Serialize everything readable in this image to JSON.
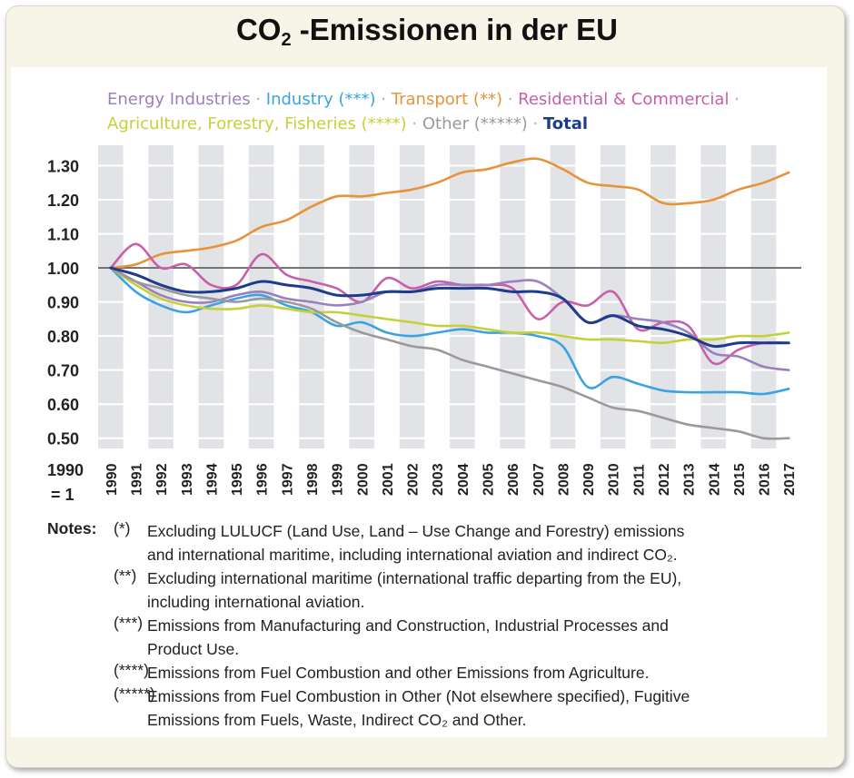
{
  "title": {
    "main": "CO",
    "sub": "2",
    "rest": " -Emissionen in der EU"
  },
  "legend": [
    {
      "label": "Energy Industries",
      "color": "#9b7fc0"
    },
    {
      "label": "Industry (***)",
      "color": "#3aa3e0"
    },
    {
      "label": "Transport (**)",
      "color": "#e8923a"
    },
    {
      "label": "Residential & Commercial",
      "color": "#c95fa8"
    },
    {
      "label": "Agriculture, Forestry, Fisheries (****)",
      "color": "#c5d13a"
    },
    {
      "label": "Other (*****)",
      "color": "#9a9a9a"
    },
    {
      "label": "Total",
      "color": "#1f3b8c"
    }
  ],
  "chart_data": {
    "type": "line",
    "x": [
      "1990",
      "1991",
      "1992",
      "1993",
      "1994",
      "1995",
      "1996",
      "1997",
      "1998",
      "1999",
      "2000",
      "2001",
      "2002",
      "2003",
      "2004",
      "2005",
      "2006",
      "2007",
      "2008",
      "2009",
      "2010",
      "2011",
      "2012",
      "2013",
      "2014",
      "2015",
      "2016",
      "2017"
    ],
    "y_ticks": [
      "1.30",
      "1.20",
      "1.10",
      "1.00",
      "0.90",
      "0.80",
      "0.70",
      "0.60",
      "0.50"
    ],
    "ylim": [
      0.47,
      1.36
    ],
    "reference_line": 1.0,
    "ylabel": "1990 = 1",
    "ylabel_line1": "1990",
    "ylabel_line2": "= 1",
    "series": [
      {
        "name": "Transport (**)",
        "color": "#e8923a",
        "values": [
          1.0,
          1.01,
          1.04,
          1.05,
          1.06,
          1.08,
          1.12,
          1.14,
          1.18,
          1.21,
          1.21,
          1.22,
          1.23,
          1.25,
          1.28,
          1.29,
          1.31,
          1.32,
          1.29,
          1.25,
          1.24,
          1.23,
          1.19,
          1.19,
          1.2,
          1.23,
          1.25,
          1.28
        ]
      },
      {
        "name": "Residential & Commercial",
        "color": "#c95fa8",
        "values": [
          1.0,
          1.07,
          1.0,
          1.01,
          0.95,
          0.95,
          1.04,
          0.98,
          0.96,
          0.94,
          0.9,
          0.97,
          0.94,
          0.96,
          0.95,
          0.95,
          0.94,
          0.85,
          0.9,
          0.89,
          0.93,
          0.82,
          0.84,
          0.83,
          0.72,
          0.76,
          0.78,
          0.78
        ]
      },
      {
        "name": "Energy Industries",
        "color": "#9b7fc0",
        "values": [
          1.0,
          0.96,
          0.92,
          0.9,
          0.9,
          0.92,
          0.93,
          0.91,
          0.9,
          0.89,
          0.9,
          0.93,
          0.93,
          0.95,
          0.95,
          0.95,
          0.96,
          0.96,
          0.91,
          0.84,
          0.86,
          0.85,
          0.84,
          0.81,
          0.75,
          0.74,
          0.71,
          0.7
        ]
      },
      {
        "name": "Industry (***)",
        "color": "#3aa3e0",
        "values": [
          1.0,
          0.93,
          0.89,
          0.87,
          0.89,
          0.91,
          0.92,
          0.89,
          0.87,
          0.83,
          0.84,
          0.81,
          0.8,
          0.81,
          0.82,
          0.81,
          0.81,
          0.8,
          0.77,
          0.65,
          0.68,
          0.66,
          0.64,
          0.635,
          0.635,
          0.635,
          0.63,
          0.645
        ]
      },
      {
        "name": "Agriculture, Forestry, Fisheries (****)",
        "color": "#c5d13a",
        "values": [
          1.0,
          0.95,
          0.91,
          0.89,
          0.88,
          0.88,
          0.89,
          0.88,
          0.87,
          0.87,
          0.86,
          0.85,
          0.84,
          0.83,
          0.83,
          0.82,
          0.81,
          0.81,
          0.8,
          0.79,
          0.79,
          0.785,
          0.78,
          0.79,
          0.79,
          0.8,
          0.8,
          0.81
        ]
      },
      {
        "name": "Other (*****)",
        "color": "#9a9a9a",
        "values": [
          1.0,
          0.96,
          0.94,
          0.92,
          0.91,
          0.9,
          0.91,
          0.9,
          0.88,
          0.84,
          0.81,
          0.79,
          0.77,
          0.76,
          0.73,
          0.71,
          0.69,
          0.67,
          0.65,
          0.62,
          0.59,
          0.58,
          0.56,
          0.54,
          0.53,
          0.52,
          0.5,
          0.5
        ]
      },
      {
        "name": "Total",
        "color": "#1f3b8c",
        "values": [
          1.0,
          0.98,
          0.95,
          0.93,
          0.93,
          0.94,
          0.96,
          0.95,
          0.94,
          0.92,
          0.92,
          0.93,
          0.93,
          0.94,
          0.94,
          0.94,
          0.93,
          0.93,
          0.91,
          0.84,
          0.86,
          0.83,
          0.82,
          0.8,
          0.77,
          0.78,
          0.78,
          0.78
        ]
      }
    ]
  },
  "notes": {
    "label": "Notes:",
    "items": [
      {
        "mark": "(*)",
        "text1": "Excluding LULUCF (Land Use, Land – Use Change and Forestry) emissions",
        "text2": "and international maritime, including international aviation and indirect CO₂."
      },
      {
        "mark": "(**)",
        "text1": "Excluding international maritime (international traffic departing from the EU),",
        "text2": "including international aviation."
      },
      {
        "mark": "(***)",
        "text1": "Emissions from Manufacturing and Construction, Industrial Processes and",
        "text2": "Product Use."
      },
      {
        "mark": "(****)",
        "text1": "Emissions from Fuel Combustion and other Emissions from Agriculture.",
        "text2": ""
      },
      {
        "mark": "(*****)",
        "text1": "Emissions from Fuel Combustion in Other (Not elsewhere specified), Fugitive",
        "text2": "Emissions from Fuels, Waste, Indirect CO₂ and Other."
      }
    ]
  }
}
